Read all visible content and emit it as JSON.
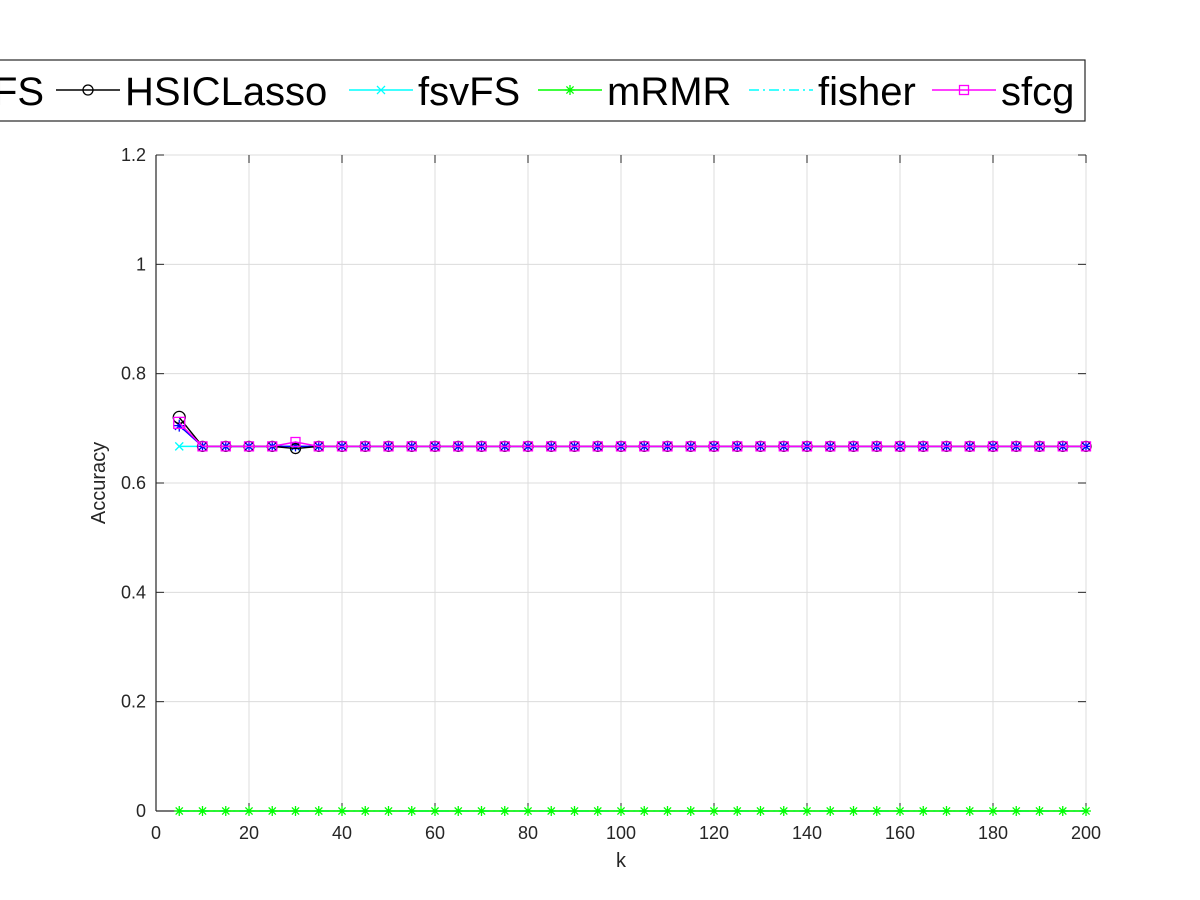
{
  "chart_data": {
    "type": "line",
    "title": "",
    "xlabel": "k",
    "ylabel": "Accuracy",
    "xlim": [
      0,
      200
    ],
    "ylim": [
      0,
      1.2
    ],
    "xticks": [
      "0",
      "20",
      "40",
      "60",
      "80",
      "100",
      "120",
      "140",
      "160",
      "180",
      "200"
    ],
    "yticks": [
      "0",
      "0.2",
      "0.4",
      "0.6",
      "0.8",
      "1",
      "1.2"
    ],
    "grid": true,
    "legend_position": "top, horizontal, outside plot area",
    "legend_labels": [
      "FS",
      "HSICLasso",
      "fsvFS",
      "mRMR",
      "fisher",
      "sfcg"
    ],
    "x": [
      5,
      10,
      15,
      20,
      25,
      30,
      35,
      40,
      45,
      50,
      55,
      60,
      65,
      70,
      75,
      80,
      85,
      90,
      95,
      100,
      105,
      110,
      115,
      120,
      125,
      130,
      135,
      140,
      145,
      150,
      155,
      160,
      165,
      170,
      175,
      180,
      185,
      190,
      195,
      200
    ],
    "series": [
      {
        "name": "FS",
        "color": "#0000ff",
        "marker": "star",
        "line": "solid",
        "values": [
          0.705,
          0.667,
          0.667,
          0.667,
          0.667,
          0.667,
          0.667,
          0.667,
          0.667,
          0.667,
          0.667,
          0.667,
          0.667,
          0.667,
          0.667,
          0.667,
          0.667,
          0.667,
          0.667,
          0.667,
          0.667,
          0.667,
          0.667,
          0.667,
          0.667,
          0.667,
          0.667,
          0.667,
          0.667,
          0.667,
          0.667,
          0.667,
          0.667,
          0.667,
          0.667,
          0.667,
          0.667,
          0.667,
          0.667,
          0.667
        ]
      },
      {
        "name": "HSICLasso",
        "color": "#000000",
        "marker": "circle",
        "line": "solid",
        "values": [
          0.72,
          0.667,
          0.667,
          0.667,
          0.667,
          0.663,
          0.667,
          0.667,
          0.667,
          0.667,
          0.667,
          0.667,
          0.667,
          0.667,
          0.667,
          0.667,
          0.667,
          0.667,
          0.667,
          0.667,
          0.667,
          0.667,
          0.667,
          0.667,
          0.667,
          0.667,
          0.667,
          0.667,
          0.667,
          0.667,
          0.667,
          0.667,
          0.667,
          0.667,
          0.667,
          0.667,
          0.667,
          0.667,
          0.667,
          0.667
        ]
      },
      {
        "name": "fsvFS",
        "color": "#00ffff",
        "marker": "x",
        "line": "solid",
        "values": [
          0.667,
          0.667,
          0.667,
          0.667,
          0.667,
          0.667,
          0.667,
          0.667,
          0.667,
          0.667,
          0.667,
          0.667,
          0.667,
          0.667,
          0.667,
          0.667,
          0.667,
          0.667,
          0.667,
          0.667,
          0.667,
          0.667,
          0.667,
          0.667,
          0.667,
          0.667,
          0.667,
          0.667,
          0.667,
          0.667,
          0.667,
          0.667,
          0.667,
          0.667,
          0.667,
          0.667,
          0.667,
          0.667,
          0.667,
          0.667
        ]
      },
      {
        "name": "mRMR",
        "color": "#00ff00",
        "marker": "star",
        "line": "solid",
        "values": [
          0,
          0,
          0,
          0,
          0,
          0,
          0,
          0,
          0,
          0,
          0,
          0,
          0,
          0,
          0,
          0,
          0,
          0,
          0,
          0,
          0,
          0,
          0,
          0,
          0,
          0,
          0,
          0,
          0,
          0,
          0,
          0,
          0,
          0,
          0,
          0,
          0,
          0,
          0,
          0
        ]
      },
      {
        "name": "fisher",
        "color": "#00ffff",
        "marker": "none",
        "line": "dashdot",
        "values": [
          0,
          0,
          0,
          0,
          0,
          0,
          0,
          0,
          0,
          0,
          0,
          0,
          0,
          0,
          0,
          0,
          0,
          0,
          0,
          0,
          0,
          0,
          0,
          0,
          0,
          0,
          0,
          0,
          0,
          0,
          0,
          0,
          0,
          0,
          0,
          0,
          0,
          0,
          0,
          0
        ]
      },
      {
        "name": "sfcg",
        "color": "#ff00ff",
        "marker": "square",
        "line": "solid",
        "values": [
          0.71,
          0.667,
          0.667,
          0.667,
          0.667,
          0.675,
          0.667,
          0.667,
          0.667,
          0.667,
          0.667,
          0.667,
          0.667,
          0.667,
          0.667,
          0.667,
          0.667,
          0.667,
          0.667,
          0.667,
          0.667,
          0.667,
          0.667,
          0.667,
          0.667,
          0.667,
          0.667,
          0.667,
          0.667,
          0.667,
          0.667,
          0.667,
          0.667,
          0.667,
          0.667,
          0.667,
          0.667,
          0.667,
          0.667,
          0.667
        ]
      }
    ]
  }
}
